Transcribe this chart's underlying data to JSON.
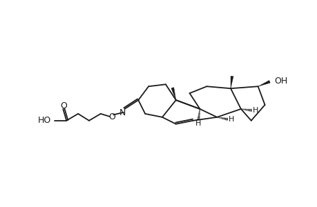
{
  "background_color": "#ffffff",
  "line_color": "#1a1a1a",
  "line_width": 1.3,
  "figsize": [
    4.6,
    3.0
  ],
  "dpi": 100,
  "xlim": [
    0,
    46
  ],
  "ylim": [
    0,
    30
  ]
}
